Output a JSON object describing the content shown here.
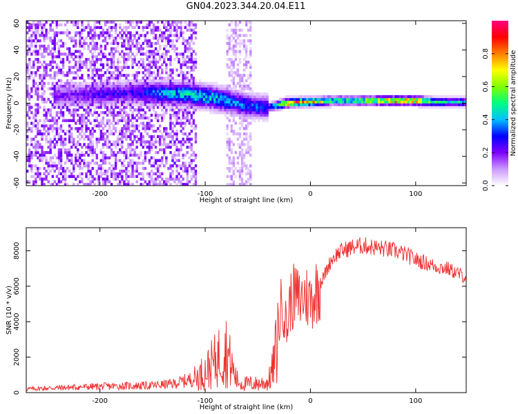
{
  "title": "GN04.2023.344.20.04.E11",
  "chart_data": [
    {
      "type": "heatmap",
      "xlabel": "Height of straight line (km)",
      "ylabel": "Frequency (Hz)",
      "xlim": [
        -270,
        148
      ],
      "ylim": [
        -62,
        62
      ],
      "xticks": [
        -200,
        -100,
        0,
        100
      ],
      "yticks": [
        -60,
        -40,
        -20,
        0,
        20,
        40,
        60
      ],
      "colorbar": {
        "label": "Normalized spectral amplitude",
        "range": [
          0,
          1
        ],
        "ticks": [
          "0.0",
          "0.2",
          "0.4",
          "0.6",
          "0.8"
        ],
        "tick_values": [
          0,
          0.2,
          0.4,
          0.6,
          0.8
        ],
        "colors": [
          "#ffffff",
          "#cc99ff",
          "#8000ff",
          "#0000ff",
          "#00c0ff",
          "#00ff80",
          "#80ff00",
          "#ffff00",
          "#ff8000",
          "#ff0000",
          "#ff0080"
        ]
      },
      "signal_ridge": {
        "x": [
          -230,
          -200,
          -170,
          -150,
          -120,
          -100,
          -80,
          -60,
          -40,
          -25,
          -10,
          0,
          20,
          50,
          80,
          100,
          120,
          148
        ],
        "frequency": [
          5,
          6,
          7,
          7,
          6,
          4,
          1,
          -3,
          -4,
          -1,
          0,
          0,
          1,
          1,
          1,
          1,
          0,
          0
        ],
        "amplitude": [
          0.2,
          0.25,
          0.25,
          0.35,
          0.45,
          0.45,
          0.4,
          0.35,
          0.3,
          0.8,
          0.85,
          0.8,
          0.55,
          0.6,
          0.85,
          0.8,
          0.5,
          0.45
        ]
      },
      "noise_regions": [
        {
          "x_range": [
            -270,
            -110
          ],
          "level": 0.15
        },
        {
          "x_range": [
            -80,
            -58
          ],
          "level": 0.08
        }
      ]
    },
    {
      "type": "line",
      "xlabel": "Height of straight line (km)",
      "ylabel": "SNR (10 * v/v)",
      "xlim": [
        -270,
        148
      ],
      "ylim": [
        0,
        9300
      ],
      "xticks": [
        -200,
        -100,
        0,
        100
      ],
      "yticks": [
        0,
        2000,
        4000,
        6000,
        8000
      ],
      "color": "#ee3333",
      "series": [
        {
          "x": [
            -270,
            -250,
            -200,
            -150,
            -130,
            -110,
            -100,
            -90,
            -85,
            -80,
            -75,
            -70,
            -65,
            -60,
            -50,
            -40,
            -35,
            -30,
            -27,
            -25,
            -22,
            -20,
            -15,
            -10,
            -5,
            0,
            10,
            20,
            25,
            30,
            40,
            50,
            60,
            70,
            80,
            90,
            100,
            105,
            110,
            120,
            130,
            148
          ],
          "y": [
            200,
            250,
            350,
            400,
            500,
            800,
            1200,
            1800,
            2200,
            2400,
            1500,
            700,
            500,
            500,
            500,
            600,
            1500,
            3500,
            5500,
            4500,
            3500,
            5000,
            5500,
            5200,
            5500,
            5200,
            6200,
            7500,
            7800,
            8000,
            8200,
            8300,
            8200,
            8100,
            8000,
            7800,
            7500,
            7400,
            7300,
            7100,
            7000,
            6500
          ]
        }
      ]
    }
  ]
}
